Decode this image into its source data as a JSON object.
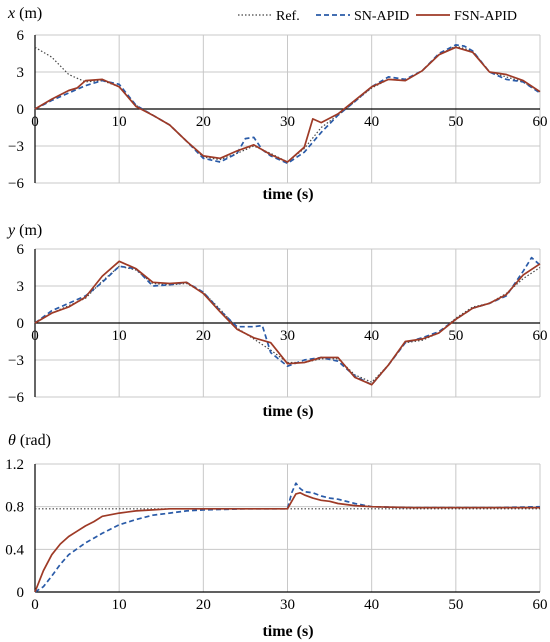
{
  "legend": [
    {
      "key": "ref",
      "label": "Ref.",
      "color": "#444444",
      "style": "dotted"
    },
    {
      "key": "sn",
      "label": "SN-APID",
      "color": "#2a5ba8",
      "style": "dashed"
    },
    {
      "key": "fsn",
      "label": "FSN-APID",
      "color": "#9e3a26",
      "style": "solid"
    }
  ],
  "chart_data": [
    {
      "type": "line",
      "ylabel_var": "x",
      "ylabel_unit": " (m)",
      "xlabel": "time (s)",
      "xlim": [
        0,
        60
      ],
      "ylim": [
        -6,
        6
      ],
      "xticks": [
        0,
        10,
        20,
        30,
        40,
        50,
        60
      ],
      "yticks": [
        -6,
        -3,
        0,
        3,
        6
      ],
      "ytick_labels": [
        "−6",
        "−3",
        "0",
        "3",
        "6"
      ],
      "grid": true,
      "series": [
        {
          "name": "Ref.",
          "x": [
            0,
            2,
            4,
            6,
            8,
            10,
            12,
            14,
            16,
            18,
            20,
            22,
            24,
            26,
            28,
            30,
            32,
            34,
            36,
            38,
            40,
            42,
            44,
            46,
            48,
            50,
            52,
            54,
            56,
            58,
            60
          ],
          "y": [
            5.0,
            4.2,
            2.8,
            2.2,
            2.3,
            1.8,
            0.3,
            -0.5,
            -1.3,
            -2.6,
            -3.9,
            -4.1,
            -3.6,
            -3.0,
            -3.6,
            -4.3,
            -3.2,
            -1.5,
            -0.5,
            0.6,
            1.7,
            2.4,
            2.3,
            3.1,
            4.4,
            5.1,
            4.7,
            3.0,
            2.6,
            2.2,
            1.4
          ]
        },
        {
          "name": "SN-APID",
          "x": [
            0,
            2,
            4,
            6,
            8,
            10,
            12,
            14,
            16,
            18,
            20,
            22,
            24,
            25,
            26,
            27,
            28,
            30,
            32,
            34,
            36,
            38,
            40,
            42,
            44,
            46,
            48,
            50,
            51,
            52,
            54,
            56,
            58,
            60
          ],
          "y": [
            0,
            0.7,
            1.3,
            1.9,
            2.3,
            2.0,
            0.3,
            -0.5,
            -1.3,
            -2.6,
            -4.0,
            -4.3,
            -3.6,
            -2.4,
            -2.3,
            -3.3,
            -3.8,
            -4.4,
            -3.5,
            -1.9,
            -0.5,
            0.6,
            1.8,
            2.6,
            2.4,
            3.1,
            4.5,
            5.2,
            5.1,
            4.7,
            3.0,
            2.4,
            2.2,
            1.3
          ]
        },
        {
          "name": "FSN-APID",
          "x": [
            0,
            2,
            4,
            5,
            6,
            8,
            10,
            12,
            14,
            16,
            18,
            20,
            22,
            24,
            26,
            28,
            30,
            32,
            33,
            34,
            36,
            38,
            40,
            42,
            44,
            46,
            48,
            50,
            52,
            54,
            56,
            58,
            60
          ],
          "y": [
            0,
            0.8,
            1.5,
            1.7,
            2.3,
            2.4,
            1.8,
            0.2,
            -0.5,
            -1.3,
            -2.6,
            -3.8,
            -4.0,
            -3.4,
            -2.9,
            -3.7,
            -4.3,
            -3.1,
            -0.8,
            -1.1,
            -0.4,
            0.7,
            1.8,
            2.4,
            2.3,
            3.1,
            4.4,
            5.0,
            4.6,
            3.0,
            2.8,
            2.3,
            1.4
          ]
        }
      ]
    },
    {
      "type": "line",
      "ylabel_var": "y",
      "ylabel_unit": " (m)",
      "xlabel": "time (s)",
      "xlim": [
        0,
        60
      ],
      "ylim": [
        -6,
        6
      ],
      "xticks": [
        0,
        10,
        20,
        30,
        40,
        50,
        60
      ],
      "yticks": [
        -6,
        -3,
        0,
        3,
        6
      ],
      "ytick_labels": [
        "−6",
        "−3",
        "0",
        "3",
        "6"
      ],
      "grid": true,
      "series": [
        {
          "name": "Ref.",
          "x": [
            0,
            2,
            4,
            6,
            8,
            10,
            12,
            14,
            16,
            18,
            20,
            22,
            24,
            26,
            28,
            30,
            32,
            34,
            36,
            38,
            40,
            42,
            44,
            46,
            48,
            50,
            52,
            54,
            56,
            58,
            60
          ],
          "y": [
            0,
            0.8,
            1.4,
            2.0,
            3.4,
            4.6,
            4.3,
            3.2,
            3.1,
            3.2,
            2.5,
            1.1,
            -0.4,
            -1.3,
            -2.2,
            -3.2,
            -3.2,
            -2.9,
            -2.9,
            -4.2,
            -4.8,
            -3.4,
            -1.6,
            -1.4,
            -0.8,
            0.4,
            1.3,
            1.6,
            2.4,
            3.6,
            4.5
          ]
        },
        {
          "name": "SN-APID",
          "x": [
            0,
            2,
            4,
            6,
            8,
            10,
            12,
            14,
            16,
            18,
            20,
            22,
            24,
            26,
            27,
            28,
            30,
            32,
            34,
            36,
            38,
            40,
            42,
            44,
            46,
            48,
            50,
            52,
            54,
            56,
            58,
            59,
            60
          ],
          "y": [
            0,
            1.0,
            1.6,
            2.2,
            3.3,
            4.6,
            4.4,
            3.0,
            3.1,
            3.3,
            2.5,
            1.0,
            -0.3,
            -0.3,
            -0.2,
            -2.4,
            -3.5,
            -3.0,
            -2.8,
            -3.1,
            -4.3,
            -5.0,
            -3.4,
            -1.6,
            -1.2,
            -0.7,
            0.3,
            1.2,
            1.6,
            2.2,
            4.2,
            5.3,
            4.7
          ]
        },
        {
          "name": "FSN-APID",
          "x": [
            0,
            2,
            4,
            6,
            8,
            10,
            12,
            14,
            16,
            18,
            20,
            22,
            24,
            26,
            28,
            30,
            32,
            34,
            36,
            38,
            40,
            42,
            44,
            46,
            48,
            50,
            52,
            54,
            56,
            58,
            60
          ],
          "y": [
            0,
            0.8,
            1.3,
            2.1,
            3.8,
            5.0,
            4.4,
            3.3,
            3.2,
            3.3,
            2.4,
            0.9,
            -0.5,
            -1.2,
            -1.6,
            -3.3,
            -3.2,
            -2.8,
            -2.8,
            -4.4,
            -5.0,
            -3.4,
            -1.5,
            -1.3,
            -0.8,
            0.3,
            1.2,
            1.6,
            2.3,
            3.9,
            4.8
          ]
        }
      ]
    },
    {
      "type": "line",
      "ylabel_var": "θ",
      "ylabel_unit": " (rad)",
      "xlabel": "time (s)",
      "xlim": [
        0,
        60
      ],
      "ylim": [
        0,
        1.2
      ],
      "xticks": [
        0,
        10,
        20,
        30,
        40,
        50,
        60
      ],
      "yticks": [
        0,
        0.4,
        0.8,
        1.2
      ],
      "ytick_labels": [
        "0",
        "0.4",
        "0.8",
        "1.2"
      ],
      "grid": true,
      "series": [
        {
          "name": "Ref.",
          "x": [
            0,
            60
          ],
          "y": [
            0.78,
            0.78
          ]
        },
        {
          "name": "SN-APID",
          "x": [
            0,
            1,
            2,
            3,
            4,
            6,
            8,
            10,
            12,
            14,
            16,
            18,
            20,
            25,
            30,
            30.5,
            31,
            31.5,
            32,
            33,
            34,
            35,
            36,
            38,
            40,
            45,
            50,
            55,
            60
          ],
          "y": [
            0,
            0.05,
            0.15,
            0.26,
            0.35,
            0.46,
            0.55,
            0.63,
            0.68,
            0.72,
            0.74,
            0.76,
            0.77,
            0.78,
            0.78,
            0.93,
            1.02,
            0.97,
            0.94,
            0.93,
            0.9,
            0.88,
            0.87,
            0.83,
            0.8,
            0.79,
            0.79,
            0.79,
            0.8
          ]
        },
        {
          "name": "FSN-APID",
          "x": [
            0,
            0.5,
            1,
            2,
            3,
            4,
            5,
            6,
            7,
            8,
            10,
            12,
            14,
            16,
            18,
            20,
            25,
            30,
            30.5,
            31,
            31.5,
            32,
            33,
            34,
            35,
            36,
            38,
            40,
            45,
            50,
            55,
            60
          ],
          "y": [
            0,
            0.1,
            0.2,
            0.35,
            0.45,
            0.52,
            0.57,
            0.62,
            0.66,
            0.71,
            0.74,
            0.76,
            0.77,
            0.78,
            0.78,
            0.78,
            0.78,
            0.78,
            0.85,
            0.92,
            0.93,
            0.91,
            0.88,
            0.86,
            0.85,
            0.83,
            0.81,
            0.8,
            0.79,
            0.79,
            0.79,
            0.79
          ]
        }
      ]
    }
  ]
}
